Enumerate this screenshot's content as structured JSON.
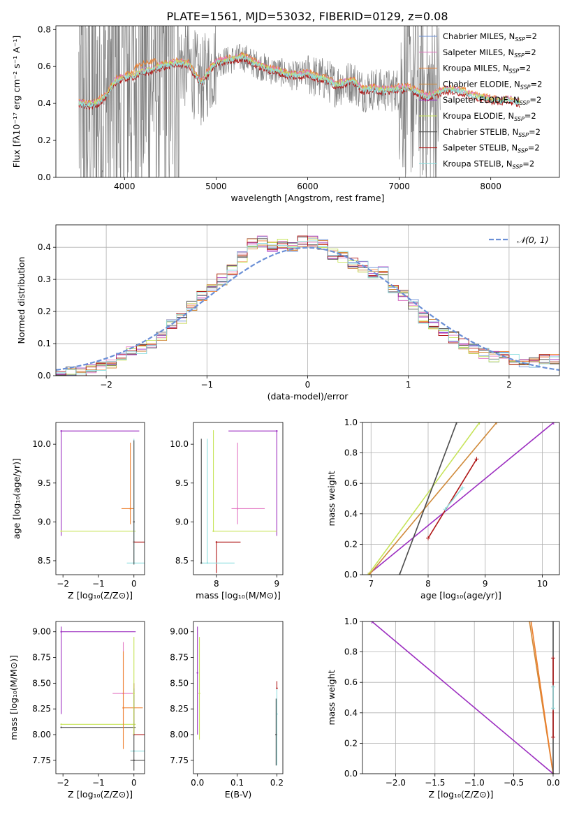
{
  "figure_title": "PLATE=1561, MJD=53032, FIBERID=0129, z=0.08",
  "colors": {
    "grey": "#808080",
    "chabrier_miles": "#6a8fd6",
    "salpeter_miles": "#e377c2",
    "kroupa_miles": "#ee7f2d",
    "chabrier_elodie": "#d08a3a",
    "salpeter_elodie": "#9c2ec0",
    "kroupa_elodie": "#c7e45a",
    "chabrier_stelib": "#4d4d4d",
    "salpeter_stelib": "#b01818",
    "kroupa_stelib": "#8fdfe0",
    "normal": "#6a8fd6",
    "grid": "#b0b0b0"
  },
  "chart_data": [
    {
      "id": "spectrum",
      "type": "line",
      "xlabel": "wavelength [Angstrom, rest frame]",
      "ylabel": "Flux [fλ10⁻¹⁷ erg cm⁻² s⁻¹ A⁻¹]",
      "xlim": [
        3250,
        8750
      ],
      "ylim": [
        0,
        0.82
      ],
      "xticks": [
        "4000",
        "5000",
        "6000",
        "7000",
        "8000"
      ],
      "yticks": [
        "0.0",
        "0.2",
        "0.4",
        "0.6",
        "0.8"
      ],
      "grid": false,
      "legend_position": "upper-right",
      "legend": [
        {
          "label": "Chabrier MILES, N",
          "sub": "SSP",
          "tail": "=2",
          "color": "chabrier_miles"
        },
        {
          "label": "Salpeter MILES, N",
          "sub": "SSP",
          "tail": "=2",
          "color": "salpeter_miles"
        },
        {
          "label": "Kroupa MILES, N",
          "sub": "SSP",
          "tail": "=2",
          "color": "kroupa_miles"
        },
        {
          "label": "Chabrier ELODIE, N",
          "sub": "SSP",
          "tail": "=2",
          "color": "chabrier_elodie"
        },
        {
          "label": "Salpeter ELODIE, N",
          "sub": "SSP",
          "tail": "=2",
          "color": "salpeter_elodie"
        },
        {
          "label": "Kroupa ELODIE, N",
          "sub": "SSP",
          "tail": "=2",
          "color": "kroupa_elodie"
        },
        {
          "label": "Chabrier STELIB, N",
          "sub": "SSP",
          "tail": "=2",
          "color": "chabrier_stelib"
        },
        {
          "label": "Salpeter STELIB, N",
          "sub": "SSP",
          "tail": "=2",
          "color": "salpeter_stelib"
        },
        {
          "label": "Kroupa STELIB, N",
          "sub": "SSP",
          "tail": "=2",
          "color": "kroupa_stelib"
        }
      ],
      "model_continuum": {
        "x": [
          3500,
          3600,
          3700,
          3800,
          3900,
          4000,
          4100,
          4200,
          4300,
          4400,
          4500,
          4600,
          4700,
          4800,
          4850,
          4900,
          5000,
          5100,
          5200,
          5300,
          5400,
          5500,
          5600,
          5700,
          5800,
          5900,
          6000,
          6100,
          6200,
          6300,
          6400,
          6500,
          6600,
          6700,
          6800,
          6900,
          7000,
          7100,
          7200,
          7300,
          7400,
          7500,
          7600,
          7700,
          7800,
          7900,
          8000,
          8100,
          8200,
          8300
        ],
        "y": [
          0.4,
          0.39,
          0.4,
          0.44,
          0.52,
          0.54,
          0.55,
          0.57,
          0.58,
          0.6,
          0.61,
          0.62,
          0.61,
          0.53,
          0.51,
          0.56,
          0.62,
          0.63,
          0.64,
          0.65,
          0.62,
          0.6,
          0.58,
          0.57,
          0.55,
          0.55,
          0.56,
          0.54,
          0.53,
          0.5,
          0.51,
          0.52,
          0.47,
          0.48,
          0.47,
          0.47,
          0.48,
          0.48,
          0.46,
          0.43,
          0.45,
          0.47,
          0.47,
          0.46,
          0.44,
          0.43,
          0.42,
          0.41,
          0.42,
          0.4
        ]
      },
      "data_noise_range": [
        3500,
        7450
      ]
    },
    {
      "id": "residual_hist",
      "type": "histogram",
      "xlabel": "(data-model)/error",
      "ylabel": "Normed distribution",
      "xlim": [
        -2.5,
        2.5
      ],
      "ylim": [
        0,
        0.47
      ],
      "xticks": [
        "−2",
        "−1",
        "0",
        "1",
        "2"
      ],
      "yticks": [
        "0.0",
        "0.1",
        "0.2",
        "0.3",
        "0.4"
      ],
      "grid": true,
      "legend": [
        {
          "label": "𝒩(0, 1)",
          "color": "normal",
          "style": "dashed"
        }
      ],
      "legend_position": "upper-right",
      "bin_width": 0.1,
      "bin_start": -2.5,
      "histogram": [
        0.0,
        0.01,
        0.01,
        0.02,
        0.03,
        0.04,
        0.06,
        0.08,
        0.08,
        0.1,
        0.12,
        0.16,
        0.18,
        0.22,
        0.25,
        0.27,
        0.3,
        0.33,
        0.37,
        0.41,
        0.42,
        0.4,
        0.41,
        0.4,
        0.42,
        0.42,
        0.41,
        0.38,
        0.37,
        0.35,
        0.34,
        0.32,
        0.33,
        0.27,
        0.25,
        0.22,
        0.18,
        0.16,
        0.14,
        0.12,
        0.1,
        0.08,
        0.07,
        0.06,
        0.06,
        0.05,
        0.04,
        0.04,
        0.05,
        0.05
      ]
    },
    {
      "id": "age_vs_Z",
      "type": "scatter",
      "xlabel": "Z [log₁₀(Z/Z⊙)]",
      "ylabel": "age  [log₁₀(age/yr)]",
      "xlim": [
        -2.2,
        0.3
      ],
      "ylim": [
        8.32,
        10.28
      ],
      "xticks": [
        "−2",
        "−1",
        "0"
      ],
      "yticks": [
        "8.5",
        "9.0",
        "9.5",
        "10.0"
      ],
      "points": [
        {
          "series": "salpeter_elodie",
          "x": -2.05,
          "y": 10.17,
          "xerr": [
            0.0,
            2.2
          ],
          "yerr": [
            1.35,
            0.0
          ]
        },
        {
          "series": "kroupa_elodie",
          "x": -2.05,
          "y": 8.88,
          "xerr": [
            0.0,
            2.1
          ],
          "yerr": [
            0.0,
            0.0
          ]
        },
        {
          "series": "kroupa_miles",
          "x": -0.1,
          "y": 9.17,
          "xerr": [
            0.25,
            0.1
          ],
          "yerr": [
            0.2,
            0.85
          ]
        },
        {
          "series": "salpeter_stelib",
          "x": 0.0,
          "y": 8.74,
          "xerr": [
            0.0,
            0.3
          ],
          "yerr": [
            0.0,
            0.0
          ]
        },
        {
          "series": "kroupa_stelib",
          "x": 0.0,
          "y": 8.47,
          "xerr": [
            0.2,
            0.3
          ],
          "yerr": [
            0.0,
            1.6
          ]
        },
        {
          "series": "chabrier_stelib",
          "x": 0.0,
          "y": 9.0,
          "xerr": [
            0.0,
            0.0
          ],
          "yerr": [
            0.55,
            1.05
          ]
        }
      ]
    },
    {
      "id": "age_vs_mass",
      "type": "scatter",
      "xlabel": "mass [log₁₀(M/M⊙)]",
      "ylabel": "",
      "xlim": [
        7.62,
        9.1
      ],
      "ylim": [
        8.32,
        10.28
      ],
      "xticks": [
        "8",
        "9"
      ],
      "yticks": [
        "8.5",
        "9.0",
        "9.5",
        "10.0"
      ],
      "points": [
        {
          "series": "salpeter_elodie",
          "x": 9.0,
          "y": 10.17,
          "xerr": [
            0.8,
            0.0
          ],
          "yerr": [
            1.35,
            0.0
          ]
        },
        {
          "series": "kroupa_elodie",
          "x": 7.95,
          "y": 8.88,
          "xerr": [
            0.0,
            1.05
          ],
          "yerr": [
            0.0,
            1.3
          ]
        },
        {
          "series": "salpeter_miles",
          "x": 8.35,
          "y": 9.17,
          "xerr": [
            0.1,
            0.45
          ],
          "yerr": [
            0.2,
            0.85
          ]
        },
        {
          "series": "salpeter_stelib",
          "x": 8.0,
          "y": 8.74,
          "xerr": [
            0.0,
            0.4
          ],
          "yerr": [
            0.4,
            0.0
          ]
        },
        {
          "series": "kroupa_stelib",
          "x": 7.85,
          "y": 8.47,
          "xerr": [
            0.1,
            0.45
          ],
          "yerr": [
            0.0,
            1.6
          ]
        },
        {
          "series": "chabrier_stelib",
          "x": 7.75,
          "y": 8.47,
          "xerr": [
            0.0,
            0.0
          ],
          "yerr": [
            0.0,
            1.6
          ]
        }
      ]
    },
    {
      "id": "cum_mass_vs_age",
      "type": "line",
      "xlabel": "age  [log₁₀(age/yr)]",
      "ylabel": "mass weight",
      "xlim": [
        6.85,
        10.3
      ],
      "ylim": [
        0,
        1.0
      ],
      "xticks": [
        "7",
        "8",
        "9",
        "10"
      ],
      "yticks": [
        "0.0",
        "0.2",
        "0.4",
        "0.6",
        "0.8",
        "1.0"
      ],
      "grid": true,
      "series": [
        {
          "name": "salpeter_elodie",
          "x": [
            6.95,
            10.2
          ],
          "y": [
            0.0,
            1.0
          ]
        },
        {
          "name": "kroupa_elodie",
          "x": [
            6.95,
            8.9
          ],
          "y": [
            0.0,
            1.0
          ]
        },
        {
          "name": "chabrier_elodie",
          "x": [
            6.97,
            9.2
          ],
          "y": [
            0.0,
            1.0
          ]
        },
        {
          "name": "chabrier_stelib",
          "x": [
            7.5,
            8.5
          ],
          "y": [
            0.0,
            1.0
          ]
        },
        {
          "name": "salpeter_stelib",
          "x": [
            8.0,
            8.85
          ],
          "y": [
            0.24,
            0.76
          ]
        },
        {
          "name": "kroupa_stelib",
          "x": [
            8.3,
            8.6
          ],
          "y": [
            0.43,
            0.57
          ]
        }
      ]
    },
    {
      "id": "mass_vs_Z",
      "type": "scatter",
      "xlabel": "Z [log₁₀(Z/Z⊙)]",
      "ylabel": "mass [log₁₀(M/M⊙)]",
      "xlim": [
        -2.2,
        0.3
      ],
      "ylim": [
        7.62,
        9.1
      ],
      "xticks": [
        "−2",
        "−1",
        "0"
      ],
      "yticks": [
        "7.75",
        "8.00",
        "8.25",
        "8.50",
        "8.75",
        "9.00",
        "9.00"
      ],
      "points": [
        {
          "series": "salpeter_elodie",
          "x": -2.05,
          "y": 9.0,
          "xerr": [
            0.0,
            2.1
          ],
          "yerr": [
            0.8,
            0.05
          ]
        },
        {
          "series": "kroupa_elodie",
          "x": -2.05,
          "y": 8.1,
          "xerr": [
            0.0,
            2.1
          ],
          "yerr": [
            0.0,
            0.0
          ]
        },
        {
          "series": "chabrier_stelib",
          "x": -2.05,
          "y": 8.07,
          "xerr": [
            0.0,
            2.1
          ],
          "yerr": [
            0.0,
            0.0
          ]
        },
        {
          "series": "salpeter_miles",
          "x": -0.3,
          "y": 8.4,
          "xerr": [
            0.3,
            0.3
          ],
          "yerr": [
            0.3,
            0.5
          ]
        },
        {
          "series": "kroupa_miles",
          "x": -0.3,
          "y": 8.26,
          "xerr": [
            0.0,
            0.55
          ],
          "yerr": [
            0.4,
            0.55
          ]
        },
        {
          "series": "salpeter_stelib",
          "x": 0.0,
          "y": 8.0,
          "xerr": [
            0.0,
            0.3
          ],
          "yerr": [
            0.0,
            0.5
          ]
        },
        {
          "series": "kroupa_stelib",
          "x": 0.0,
          "y": 7.84,
          "xerr": [
            0.1,
            0.3
          ],
          "yerr": [
            0.0,
            0.0
          ]
        },
        {
          "series": "chabrier_stelib",
          "x": 0.0,
          "y": 7.75,
          "xerr": [
            0.1,
            0.3
          ],
          "yerr": [
            0.1,
            0.7
          ]
        },
        {
          "series": "kroupa_elodie",
          "x": 0.0,
          "y": 8.4,
          "xerr": [
            0.0,
            0.0
          ],
          "yerr": [
            0.4,
            0.55
          ]
        }
      ]
    },
    {
      "id": "mass_vs_ebv",
      "type": "scatter",
      "xlabel": "E(B-V)",
      "ylabel": "",
      "xlim": [
        -0.01,
        0.215
      ],
      "ylim": [
        7.62,
        9.1
      ],
      "xticks": [
        "0.0",
        "0.1",
        "0.2"
      ],
      "yticks": [
        "7.75",
        "8.00",
        "8.25",
        "8.50",
        "8.75",
        "9.00"
      ],
      "points": [
        {
          "series": "salpeter_elodie",
          "x": 0.0,
          "y": 8.6,
          "xerr": [
            0.0,
            0.0
          ],
          "yerr": [
            0.6,
            0.45
          ]
        },
        {
          "series": "kroupa_elodie",
          "x": 0.005,
          "y": 8.4,
          "xerr": [
            0.0,
            0.0
          ],
          "yerr": [
            0.45,
            0.55
          ]
        },
        {
          "series": "kroupa_stelib",
          "x": 0.2,
          "y": 8.2,
          "xerr": [
            0.0,
            0.0
          ],
          "yerr": [
            0.5,
            0.25
          ]
        },
        {
          "series": "chabrier_stelib",
          "x": 0.198,
          "y": 8.0,
          "xerr": [
            0.0,
            0.0
          ],
          "yerr": [
            0.3,
            0.35
          ]
        },
        {
          "series": "salpeter_stelib",
          "x": 0.2,
          "y": 8.45,
          "xerr": [
            0.0,
            0.0
          ],
          "yerr": [
            0.0,
            0.07
          ]
        }
      ]
    },
    {
      "id": "cum_mass_vs_Z",
      "type": "line",
      "xlabel": "Z [log₁₀(Z/Z⊙)]",
      "ylabel": "mass weight",
      "xlim": [
        -2.42,
        0.08
      ],
      "ylim": [
        0,
        1.0
      ],
      "xticks": [
        "−2.0",
        "−1.5",
        "−1.0",
        "−0.5",
        "0.0"
      ],
      "yticks": [
        "0.0",
        "0.2",
        "0.4",
        "0.6",
        "0.8",
        "1.0"
      ],
      "grid": true,
      "series": [
        {
          "name": "salpeter_elodie",
          "x": [
            -2.3,
            0.0
          ],
          "y": [
            1.0,
            0.0
          ]
        },
        {
          "name": "chabrier_elodie",
          "x": [
            -0.3,
            0.0
          ],
          "y": [
            1.0,
            0.0
          ]
        },
        {
          "name": "kroupa_miles",
          "x": [
            -0.28,
            0.0
          ],
          "y": [
            1.0,
            0.0
          ]
        },
        {
          "name": "chabrier_stelib",
          "x": [
            0.0,
            0.0
          ],
          "y": [
            0.0,
            1.0
          ]
        },
        {
          "name": "salpeter_stelib",
          "x": [
            0.0,
            0.0
          ],
          "y": [
            0.24,
            0.76
          ]
        },
        {
          "name": "kroupa_stelib",
          "x": [
            0.0,
            0.0
          ],
          "y": [
            0.43,
            0.57
          ]
        }
      ]
    }
  ]
}
